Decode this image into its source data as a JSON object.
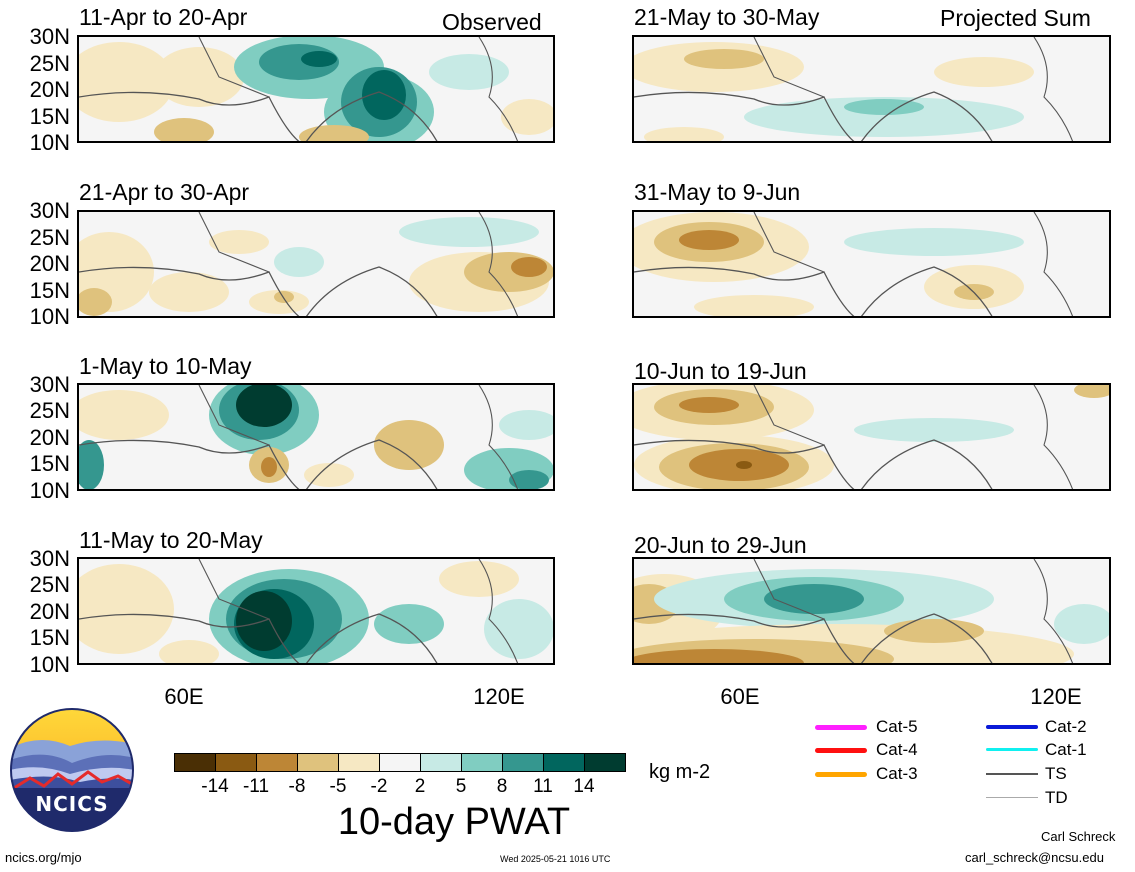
{
  "header": {
    "observed_label": "Observed",
    "projected_label": "Projected Sum"
  },
  "lat_labels": [
    "30N",
    "25N",
    "20N",
    "15N",
    "10N"
  ],
  "lon_labels": [
    "60E",
    "120E"
  ],
  "observed_panels": [
    {
      "title": "11-Apr to 20-Apr"
    },
    {
      "title": "21-Apr to 30-Apr"
    },
    {
      "title": "1-May to 10-May"
    },
    {
      "title": "11-May to 20-May"
    }
  ],
  "projected_panels": [
    {
      "title": "21-May to 30-May"
    },
    {
      "title": "31-May to 9-Jun"
    },
    {
      "title": "10-Jun to 19-Jun"
    },
    {
      "title": "20-Jun to 29-Jun"
    }
  ],
  "colorbar": {
    "title": "10-day PWAT",
    "units": "kg m-2",
    "ticks": [
      "-14",
      "-11",
      "-8",
      "-5",
      "-2",
      "2",
      "5",
      "8",
      "11",
      "14"
    ],
    "colors": [
      "#4a2f05",
      "#8a5a12",
      "#bd8636",
      "#dfc27d",
      "#f6e8c3",
      "#f5f5f5",
      "#c7eae5",
      "#80cdc1",
      "#35978f",
      "#01665e",
      "#003c30"
    ]
  },
  "legend": {
    "items": [
      {
        "label": "Cat-5",
        "color": "#ff20ff"
      },
      {
        "label": "Cat-4",
        "color": "#ff1010"
      },
      {
        "label": "Cat-3",
        "color": "#ffa500"
      },
      {
        "label": "Cat-2",
        "color": "#0a1ad8"
      },
      {
        "label": "Cat-1",
        "color": "#10f0f0"
      },
      {
        "label": "TS",
        "color": "#555555"
      },
      {
        "label": "TD",
        "color": "#aaaaaa"
      }
    ]
  },
  "logo": {
    "text": "NCICS"
  },
  "footer": {
    "site": "ncics.org/mjo",
    "timestamp": "Wed 2025-05-21 1016 UTC",
    "author": "Carl Schreck",
    "email": "carl_schreck@ncsu.edu"
  }
}
